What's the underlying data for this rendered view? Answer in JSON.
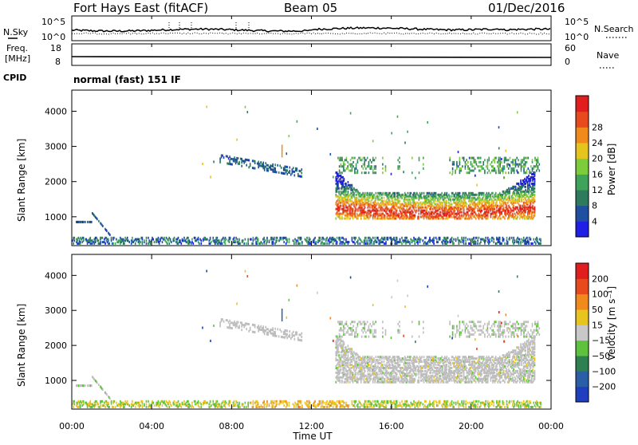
{
  "header": {
    "station": "Fort Hays East (fitACF)",
    "beam": "Beam 05",
    "date": "01/Dec/2016"
  },
  "panels": {
    "nsky": {
      "left_label": "N.Sky",
      "right_label": "N.Search",
      "left_ticks": [
        "10^5",
        "10^0"
      ],
      "right_ticks": [
        "10^5",
        "10^0"
      ]
    },
    "freq": {
      "left_label_line1": "Freq.",
      "left_label_line2": "[MHz]",
      "right_label": "Nave",
      "left_ticks": [
        "18",
        "8"
      ],
      "right_ticks": [
        "60",
        "0"
      ]
    },
    "cpid": {
      "label": "CPID",
      "mode": "normal (fast) 151 IF"
    }
  },
  "colors": {
    "power_scale": [
      "#1f1fe6",
      "#1e4fa0",
      "#2e7a5c",
      "#3fa35a",
      "#7ccc3c",
      "#e6c41e",
      "#f08a1c",
      "#e84a1e",
      "#e01e1e"
    ],
    "velocity_scale": [
      "#1f3fbf",
      "#2a5fa8",
      "#2e8050",
      "#5fc23c",
      "#c8c8c8",
      "#e8c41e",
      "#f08a1c",
      "#e84a1e",
      "#e01e1e"
    ],
    "ground_scatter": "#bebebe"
  },
  "chart_data": [
    {
      "type": "heatmap",
      "title": "Power",
      "ylabel": "Slant Range [km]",
      "xlabel": "",
      "x_range_hours": [
        0,
        24
      ],
      "ylim": [
        180,
        4600
      ],
      "y_ticks": [
        "1000",
        "2000",
        "3000",
        "4000"
      ],
      "x_ticks": [
        "00:00",
        "04:00",
        "08:00",
        "12:00",
        "16:00",
        "20:00",
        "00:00"
      ],
      "colorbar": {
        "label": "Power [dB]",
        "ticks": [
          "4",
          "8",
          "12",
          "16",
          "20",
          "24",
          "28"
        ],
        "range": [
          0,
          30
        ]
      }
    },
    {
      "type": "heatmap",
      "title": "Velocity",
      "ylabel": "Slant Range [km]",
      "xlabel": "Time UT",
      "x_range_hours": [
        0,
        24
      ],
      "ylim": [
        180,
        4600
      ],
      "y_ticks": [
        "1000",
        "2000",
        "3000",
        "4000"
      ],
      "x_ticks": [
        "00:00",
        "04:00",
        "08:00",
        "12:00",
        "16:00",
        "20:00",
        "00:00"
      ],
      "colorbar": {
        "label": "Velocity [m s⁻¹]",
        "ticks": [
          "200",
          "100",
          "50",
          "15",
          "−15",
          "−50",
          "−100",
          "−200"
        ],
        "range": [
          -250,
          250
        ]
      }
    }
  ]
}
